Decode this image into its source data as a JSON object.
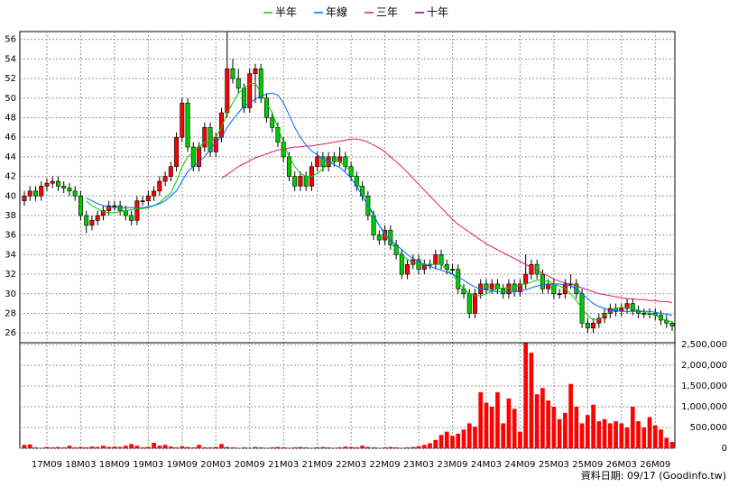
{
  "chart_data": {
    "type": "candlestick",
    "categories": [
      null,
      null,
      null,
      null,
      "17M09",
      null,
      null,
      null,
      null,
      null,
      "18M03",
      null,
      null,
      null,
      null,
      null,
      "18M09",
      null,
      null,
      null,
      null,
      null,
      "19M03",
      null,
      null,
      null,
      null,
      null,
      "19M09",
      null,
      null,
      null,
      null,
      null,
      "20M03",
      null,
      null,
      null,
      null,
      null,
      "20M09",
      null,
      null,
      null,
      null,
      null,
      "21M03",
      null,
      null,
      null,
      null,
      null,
      "21M09",
      null,
      null,
      null,
      null,
      null,
      "22M03",
      null,
      null,
      null,
      null,
      null,
      "22M09",
      null,
      null,
      null,
      null,
      null,
      "23M03",
      null,
      null,
      null,
      null,
      null,
      "23M09",
      null,
      null,
      null,
      null,
      null,
      "24M03",
      null,
      null,
      null,
      null,
      null,
      "24M09",
      null,
      null,
      null,
      null,
      null,
      "25M03",
      null,
      null,
      null,
      null,
      null,
      "25M09",
      null,
      null,
      null,
      null,
      null,
      "26M03",
      null,
      null,
      null,
      null,
      null,
      "26M09",
      null,
      null,
      null
    ],
    "ohlc": [
      [
        39.5,
        40.5,
        39,
        40
      ],
      [
        40,
        41,
        39.5,
        40.5
      ],
      [
        40.5,
        41,
        39.5,
        40
      ],
      [
        40,
        41.5,
        39.5,
        41
      ],
      [
        41,
        41.8,
        40.5,
        41.3
      ],
      [
        41.3,
        42,
        40.8,
        41.5
      ],
      [
        41.5,
        42,
        40.5,
        41
      ],
      [
        41,
        41.5,
        40.3,
        40.8
      ],
      [
        40.8,
        41.3,
        40,
        40.5
      ],
      [
        40.5,
        41,
        39.5,
        40
      ],
      [
        40,
        40.5,
        37.5,
        38
      ],
      [
        38,
        38.5,
        36.2,
        37
      ],
      [
        37,
        38,
        36.5,
        37.5
      ],
      [
        37.5,
        38.5,
        37,
        38
      ],
      [
        38,
        39,
        37.5,
        38.5
      ],
      [
        38.5,
        39.5,
        38,
        39
      ],
      [
        39,
        39.5,
        38.5,
        39
      ],
      [
        39,
        39.5,
        38,
        38.5
      ],
      [
        38.5,
        39,
        37.5,
        38
      ],
      [
        38,
        38.5,
        37,
        37.5
      ],
      [
        37.5,
        40,
        37,
        39.5
      ],
      [
        39.5,
        40,
        39,
        39.5
      ],
      [
        39.5,
        40.5,
        39,
        40
      ],
      [
        40,
        41,
        39.5,
        40.5
      ],
      [
        40.5,
        42,
        40,
        41.5
      ],
      [
        41.5,
        42.5,
        41,
        42
      ],
      [
        42,
        43.5,
        41.5,
        43
      ],
      [
        43,
        46.5,
        42.5,
        46
      ],
      [
        46,
        50,
        45.5,
        49.5
      ],
      [
        49.5,
        50,
        44.5,
        45
      ],
      [
        45,
        45.5,
        42.5,
        43
      ],
      [
        43,
        45.5,
        42.5,
        45
      ],
      [
        45,
        47.5,
        44.5,
        47
      ],
      [
        47,
        47.5,
        44,
        44.5
      ],
      [
        44.5,
        46.5,
        44,
        46
      ],
      [
        46,
        49,
        45.5,
        48.5
      ],
      [
        48.5,
        56.8,
        48,
        53
      ],
      [
        53,
        54,
        51.5,
        52
      ],
      [
        52,
        53,
        50.5,
        51
      ],
      [
        51,
        51.5,
        48.5,
        49
      ],
      [
        49,
        53,
        48.5,
        52.5
      ],
      [
        52.5,
        53.5,
        49.5,
        53
      ],
      [
        53,
        53.5,
        49.5,
        50
      ],
      [
        50,
        50.5,
        47.5,
        48
      ],
      [
        48,
        48.5,
        46.5,
        47
      ],
      [
        47,
        47.5,
        45,
        45.5
      ],
      [
        45.5,
        46,
        43.5,
        44
      ],
      [
        44,
        44.5,
        41.5,
        42
      ],
      [
        42,
        42.5,
        40.5,
        41
      ],
      [
        41,
        42.5,
        40.5,
        42
      ],
      [
        42,
        42.5,
        40.5,
        41
      ],
      [
        41,
        43.5,
        40.5,
        43
      ],
      [
        43,
        44.5,
        42.5,
        44
      ],
      [
        44,
        44.5,
        42.5,
        43
      ],
      [
        43,
        44.5,
        42.5,
        44
      ],
      [
        44,
        44.5,
        43,
        43.5
      ],
      [
        43.5,
        45,
        43,
        44
      ],
      [
        44,
        44.5,
        42.5,
        43
      ],
      [
        43,
        43.5,
        41.5,
        42
      ],
      [
        42,
        42.5,
        40.5,
        41
      ],
      [
        41,
        41.5,
        39.5,
        40
      ],
      [
        40,
        40.5,
        37.5,
        38
      ],
      [
        38,
        38.5,
        35.5,
        36
      ],
      [
        36,
        36.5,
        35,
        35.5
      ],
      [
        35.5,
        37,
        35,
        36.5
      ],
      [
        36.5,
        37,
        34.5,
        35
      ],
      [
        35,
        35.5,
        33.5,
        34
      ],
      [
        34,
        34.5,
        31.5,
        32
      ],
      [
        32,
        33.5,
        31.5,
        33
      ],
      [
        33,
        34,
        32.5,
        33.5
      ],
      [
        33.5,
        34,
        32,
        32.5
      ],
      [
        32.5,
        33.5,
        32,
        33
      ],
      [
        33,
        33.5,
        32.5,
        33
      ],
      [
        33,
        34.5,
        32.5,
        34
      ],
      [
        34,
        34.5,
        32.5,
        33
      ],
      [
        33,
        33.5,
        32,
        32.5
      ],
      [
        32.5,
        33,
        32,
        32.5
      ],
      [
        32.5,
        33,
        30,
        30.5
      ],
      [
        30.5,
        31,
        29.5,
        30
      ],
      [
        30,
        30.5,
        27.5,
        28
      ],
      [
        28,
        30.5,
        27.5,
        30
      ],
      [
        30,
        31.5,
        29.5,
        31
      ],
      [
        31,
        31.5,
        30,
        30.5
      ],
      [
        30.5,
        31.5,
        30,
        31
      ],
      [
        31,
        31.5,
        30,
        30.5
      ],
      [
        30.5,
        31,
        29.5,
        30
      ],
      [
        30,
        31.5,
        29.5,
        31
      ],
      [
        31,
        31.5,
        29.7,
        30.2
      ],
      [
        30.2,
        31.5,
        29.7,
        31
      ],
      [
        31,
        34,
        30.5,
        32
      ],
      [
        32,
        33.5,
        31.5,
        33
      ],
      [
        33,
        33.5,
        31.5,
        32
      ],
      [
        32,
        32.5,
        30,
        30.5
      ],
      [
        30.5,
        31.5,
        30,
        31
      ],
      [
        31,
        31.5,
        29.5,
        30
      ],
      [
        30,
        30.5,
        29.5,
        30
      ],
      [
        30,
        31.5,
        29.5,
        31
      ],
      [
        31,
        32,
        30.5,
        31
      ],
      [
        31,
        31.5,
        29.5,
        30
      ],
      [
        30,
        30.5,
        26.5,
        27
      ],
      [
        27,
        27.5,
        26,
        26.5
      ],
      [
        26.5,
        27.5,
        26,
        27
      ],
      [
        27,
        28,
        26.5,
        27.5
      ],
      [
        27.5,
        28.5,
        27,
        28
      ],
      [
        28,
        29,
        27.5,
        28.5
      ],
      [
        28.5,
        29,
        27.7,
        28.2
      ],
      [
        28.2,
        29,
        27.7,
        28.5
      ],
      [
        28.5,
        29.5,
        28,
        29
      ],
      [
        29,
        29.5,
        27.8,
        28.3
      ],
      [
        28.3,
        28.8,
        27.5,
        28
      ],
      [
        28,
        28.5,
        27.5,
        28
      ],
      [
        28,
        28.5,
        27.5,
        28
      ],
      [
        28,
        28.5,
        27.3,
        27.8
      ],
      [
        27.8,
        28.3,
        26.8,
        27.3
      ],
      [
        27.3,
        27.8,
        26.5,
        27
      ],
      [
        27,
        27.2,
        26.2,
        26.7
      ]
    ],
    "up_color": "#ff0000",
    "down_color": "#00cc00",
    "ylim": [
      25,
      56.8
    ],
    "yticks": [
      26,
      28,
      30,
      32,
      34,
      36,
      38,
      40,
      42,
      44,
      46,
      48,
      50,
      52,
      54,
      56
    ],
    "volume": [
      80000,
      90000,
      20000,
      10000,
      30000,
      20000,
      30000,
      20000,
      60000,
      20000,
      30000,
      20000,
      40000,
      30000,
      60000,
      30000,
      40000,
      30000,
      60000,
      100000,
      60000,
      20000,
      30000,
      130000,
      60000,
      80000,
      40000,
      20000,
      50000,
      30000,
      20000,
      80000,
      20000,
      20000,
      30000,
      100000,
      30000,
      20000,
      10000,
      20000,
      10000,
      30000,
      20000,
      10000,
      20000,
      30000,
      20000,
      10000,
      20000,
      30000,
      20000,
      10000,
      20000,
      30000,
      20000,
      10000,
      20000,
      40000,
      30000,
      20000,
      60000,
      30000,
      20000,
      10000,
      20000,
      30000,
      20000,
      10000,
      20000,
      30000,
      50000,
      80000,
      120000,
      200000,
      320000,
      400000,
      300000,
      350000,
      450000,
      600000,
      520000,
      1350000,
      1100000,
      1000000,
      1350000,
      600000,
      1200000,
      950000,
      400000,
      2550000,
      2300000,
      1300000,
      1450000,
      1150000,
      1000000,
      700000,
      850000,
      1550000,
      1000000,
      600000,
      800000,
      1050000,
      650000,
      700000,
      600000,
      650000,
      600000,
      500000,
      1000000,
      650000,
      500000,
      750000,
      550000,
      450000,
      250000,
      150000
    ],
    "volume_color": "#ff0000",
    "y2lim": [
      0,
      2500000
    ],
    "y2ticks": [
      0,
      {
        "value": 500000,
        "label": "500,000"
      },
      {
        "value": 1000000,
        "label": "1,000,000"
      },
      {
        "value": 1500000,
        "label": "1,500,000"
      },
      {
        "value": 2000000,
        "label": "2,000,000"
      },
      {
        "value": 2500000,
        "label": "2,500,000"
      }
    ],
    "grid": true,
    "legend": "top",
    "series": [
      {
        "name": "半年",
        "color": "#00cc00",
        "values": [
          null,
          null,
          null,
          null,
          null,
          null,
          null,
          null,
          null,
          null,
          null,
          39.5,
          39,
          38.7,
          38.4,
          38.3,
          38.3,
          38.4,
          38.5,
          38.6,
          38.7,
          38.7,
          38.8,
          39,
          39.3,
          39.8,
          40.3,
          41.5,
          43,
          44,
          44.5,
          45,
          45.5,
          45.5,
          46,
          47,
          48.5,
          49.5,
          50.5,
          51,
          51.5,
          51.5,
          50.5,
          49.5,
          48.5,
          47,
          45.5,
          44,
          43,
          42.3,
          42,
          42,
          42.3,
          42.8,
          43.3,
          43.6,
          43.5,
          43,
          42.5,
          41.5,
          40.5,
          39.3,
          38,
          37,
          36,
          35.3,
          34.5,
          34,
          33.5,
          33.2,
          33,
          33,
          33,
          33,
          33,
          32.5,
          32,
          31.2,
          30.5,
          30,
          29.8,
          29.8,
          30,
          30.3,
          30.5,
          30.6,
          30.6,
          30.7,
          30.9,
          31,
          31.2,
          31.4,
          31.4,
          31.3,
          31,
          30.8,
          30.5,
          30,
          29.3,
          28.5,
          27.8,
          27.3,
          27.4,
          27.8,
          28.2,
          28.5,
          28.6,
          28.6,
          28.5,
          28.3,
          28.1,
          28,
          27.8,
          27.5,
          27.3,
          27.1
        ]
      },
      {
        "name": "年線",
        "color": "#0066ff",
        "values": [
          null,
          null,
          null,
          null,
          null,
          null,
          null,
          null,
          null,
          null,
          null,
          39.8,
          39.5,
          39.2,
          39,
          38.9,
          38.8,
          38.8,
          38.8,
          38.8,
          38.8,
          38.8,
          38.9,
          39,
          39.2,
          39.5,
          40,
          40.5,
          41.5,
          42.5,
          43,
          43.5,
          44,
          44.8,
          45.5,
          46,
          47,
          47.8,
          48.5,
          49.2,
          49.5,
          49.9,
          50.2,
          50.4,
          50.5,
          50.3,
          49.5,
          48.3,
          47,
          46,
          45.2,
          44.6,
          44.2,
          43.8,
          43.5,
          43.2,
          42.9,
          42.4,
          41.8,
          41,
          40,
          39,
          38,
          37,
          36.2,
          35.5,
          35,
          34.5,
          34,
          33.6,
          33.3,
          33,
          32.8,
          32.6,
          32.4,
          32.2,
          32,
          31.7,
          31.4,
          31,
          30.7,
          30.5,
          30.4,
          30.3,
          30.2,
          30.2,
          30.2,
          30.2,
          30.3,
          30.4,
          30.6,
          30.8,
          30.9,
          31,
          31,
          31,
          30.9,
          30.8,
          30.5,
          30,
          29.5,
          29,
          28.7,
          28.5,
          28.3,
          28.3,
          28.2,
          28.2,
          28.2,
          28.2,
          28.2,
          28.2,
          28.1,
          28,
          27.9,
          27.8
        ]
      },
      {
        "name": "三年",
        "color": "#e0186c",
        "values": [
          null,
          null,
          null,
          null,
          null,
          null,
          null,
          null,
          null,
          null,
          null,
          null,
          null,
          null,
          null,
          null,
          null,
          null,
          null,
          null,
          null,
          null,
          null,
          null,
          null,
          null,
          null,
          null,
          null,
          null,
          null,
          null,
          null,
          null,
          null,
          41.8,
          42.2,
          42.6,
          43,
          43.3,
          43.6,
          43.9,
          44.1,
          44.3,
          44.5,
          44.7,
          44.8,
          44.9,
          45,
          45,
          45.1,
          45.1,
          45.2,
          45.3,
          45.4,
          45.5,
          45.6,
          45.7,
          45.8,
          45.8,
          45.7,
          45.5,
          45.2,
          44.9,
          44.5,
          44,
          43.5,
          43,
          42.4,
          41.8,
          41.2,
          40.6,
          40,
          39.4,
          38.8,
          38.2,
          37.6,
          37.1,
          36.7,
          36.3,
          35.9,
          35.5,
          35.1,
          34.8,
          34.5,
          34.2,
          33.9,
          33.6,
          33.3,
          33,
          32.7,
          32.4,
          32.1,
          31.8,
          31.5,
          31.3,
          31.1,
          31,
          30.8,
          30.6,
          30.4,
          30.2,
          30,
          29.9,
          29.8,
          29.7,
          29.6,
          29.5,
          29.5,
          29.4,
          29.4,
          29.3,
          29.3,
          29.2,
          29.2,
          29.1
        ]
      },
      {
        "name": "十年",
        "color": "#800080",
        "values": [
          null,
          null,
          null,
          null,
          null,
          null,
          null,
          null,
          null,
          null,
          null,
          null,
          null,
          null,
          null,
          null,
          null,
          null,
          null,
          null,
          null,
          null,
          null,
          null,
          null,
          null,
          null,
          null,
          null,
          null,
          null,
          null,
          null,
          null,
          null,
          null,
          null,
          null,
          null,
          null,
          null,
          null,
          null,
          null,
          null,
          null,
          null,
          null,
          null,
          null,
          null,
          null,
          null,
          null,
          null,
          null,
          null,
          null,
          null,
          null,
          null,
          null,
          null,
          null,
          null,
          null,
          null,
          null,
          null,
          null,
          null,
          null,
          null,
          null,
          null,
          null,
          null,
          null,
          null,
          null,
          null,
          null,
          null,
          null,
          null,
          null,
          null,
          null,
          null,
          null,
          null,
          null,
          null,
          null,
          null,
          null,
          null,
          null,
          null,
          null,
          null,
          null,
          null,
          null,
          null,
          null,
          null,
          null,
          null,
          null,
          null,
          null,
          null,
          null,
          null,
          null
        ]
      }
    ],
    "source_note": "資料日期: 09/17 (Goodinfo.tw)"
  }
}
